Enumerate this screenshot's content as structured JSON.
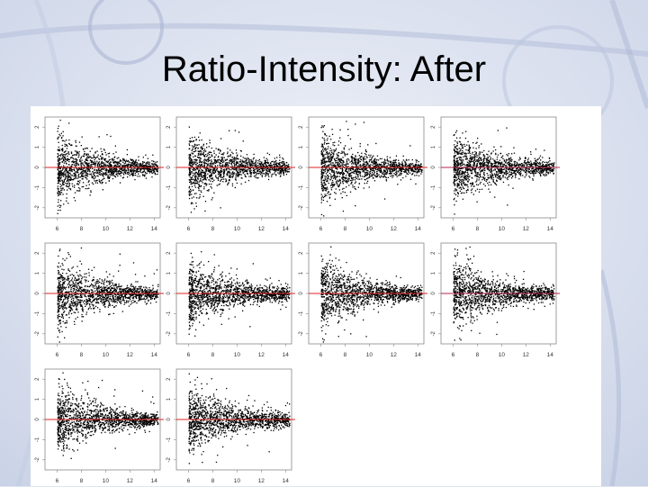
{
  "slide": {
    "title": "Ratio-Intensity: After",
    "background_color": "#dfe5f1",
    "accent_line_color": "#e02020",
    "accent_line_color_alt": "#3a3ad8"
  },
  "chart_data": {
    "type": "scatter",
    "title": "",
    "panels": [
      {
        "panel": 1,
        "xlim": [
          5,
          14.5
        ],
        "x_ticks": [
          "6",
          "8",
          "10",
          "12",
          "14"
        ],
        "y_ticks": [
          "2",
          "1",
          "0",
          "-1",
          "-2"
        ],
        "reference_line_y": 0
      },
      {
        "panel": 2,
        "xlim": [
          5,
          14.5
        ],
        "x_ticks": [
          "6",
          "8",
          "10",
          "12",
          "14"
        ],
        "y_ticks": [
          "2",
          "1",
          "0",
          "-1",
          "-2"
        ],
        "reference_line_y": 0
      },
      {
        "panel": 3,
        "xlim": [
          5,
          14.5
        ],
        "x_ticks": [
          "6",
          "8",
          "10",
          "12",
          "14"
        ],
        "y_ticks": [
          "2",
          "1",
          "0",
          "-1",
          "-2"
        ],
        "reference_line_y": 0
      },
      {
        "panel": 4,
        "xlim": [
          5,
          14.5
        ],
        "x_ticks": [
          "6",
          "8",
          "10",
          "12",
          "14"
        ],
        "y_ticks": [
          "2",
          "1",
          "0",
          "-1",
          "-2"
        ],
        "reference_line_y": 0
      },
      {
        "panel": 5,
        "xlim": [
          5,
          14.5
        ],
        "x_ticks": [
          "6",
          "8",
          "10",
          "12",
          "14"
        ],
        "y_ticks": [
          "2",
          "1",
          "0",
          "-1",
          "-2"
        ],
        "reference_line_y": 0
      },
      {
        "panel": 6,
        "xlim": [
          5,
          14.5
        ],
        "x_ticks": [
          "6",
          "8",
          "10",
          "12",
          "14"
        ],
        "y_ticks": [
          "2",
          "1",
          "0",
          "-1",
          "-2"
        ],
        "reference_line_y": 0
      },
      {
        "panel": 7,
        "xlim": [
          5,
          14.5
        ],
        "x_ticks": [
          "6",
          "8",
          "10",
          "12",
          "14"
        ],
        "y_ticks": [
          "2",
          "1",
          "0",
          "-1",
          "-2"
        ],
        "reference_line_y": 0
      },
      {
        "panel": 8,
        "xlim": [
          5,
          14.5
        ],
        "x_ticks": [
          "6",
          "8",
          "10",
          "12",
          "14"
        ],
        "y_ticks": [
          "2",
          "1",
          "0",
          "-1",
          "-2"
        ],
        "reference_line_y": 0
      },
      {
        "panel": 9,
        "xlim": [
          5,
          14.5
        ],
        "x_ticks": [
          "6",
          "8",
          "10",
          "12",
          "14"
        ],
        "y_ticks": [
          "2",
          "1",
          "0",
          "-1",
          "-2"
        ],
        "reference_line_y": 0
      },
      {
        "panel": 10,
        "xlim": [
          5,
          14.5
        ],
        "x_ticks": [
          "6",
          "8",
          "10",
          "12",
          "14"
        ],
        "y_ticks": [
          "2",
          "1",
          "0",
          "-1",
          "-2"
        ],
        "reference_line_y": 0
      }
    ],
    "ylim": [
      -2.5,
      2.5
    ],
    "grid": false,
    "legend": "none"
  }
}
